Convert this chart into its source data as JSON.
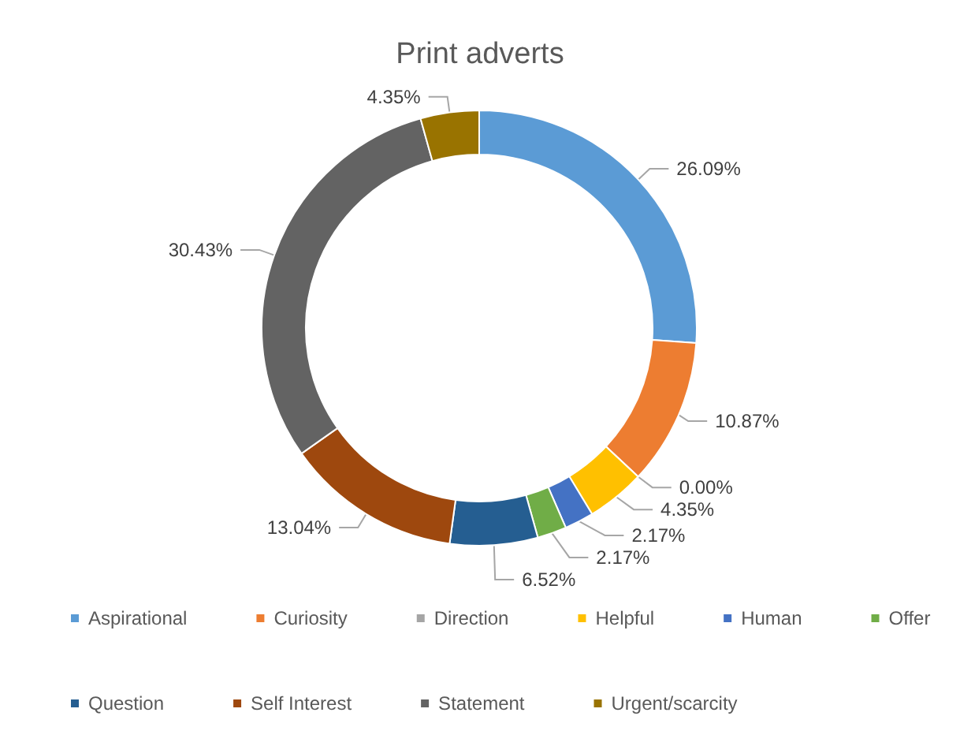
{
  "chart_data": {
    "type": "donut",
    "title": "Print adverts",
    "categories": [
      "Aspirational",
      "Curiosity",
      "Direction",
      "Helpful",
      "Human",
      "Offer",
      "Question",
      "Self Interest",
      "Statement",
      "Urgent/scarcity"
    ],
    "values": [
      26.09,
      10.87,
      0.0,
      4.35,
      2.17,
      2.17,
      6.52,
      13.04,
      30.43,
      4.35
    ],
    "colors": [
      "#5b9bd5",
      "#ed7d31",
      "#a5a5a5",
      "#ffc000",
      "#4472c4",
      "#70ad47",
      "#255e91",
      "#9e480e",
      "#636363",
      "#997300"
    ],
    "value_labels": [
      "26.09%",
      "10.87%",
      "0.00%",
      "4.35%",
      "2.17%",
      "2.17%",
      "6.52%",
      "13.04%",
      "30.43%",
      "4.35%"
    ],
    "legend": "bottom"
  }
}
